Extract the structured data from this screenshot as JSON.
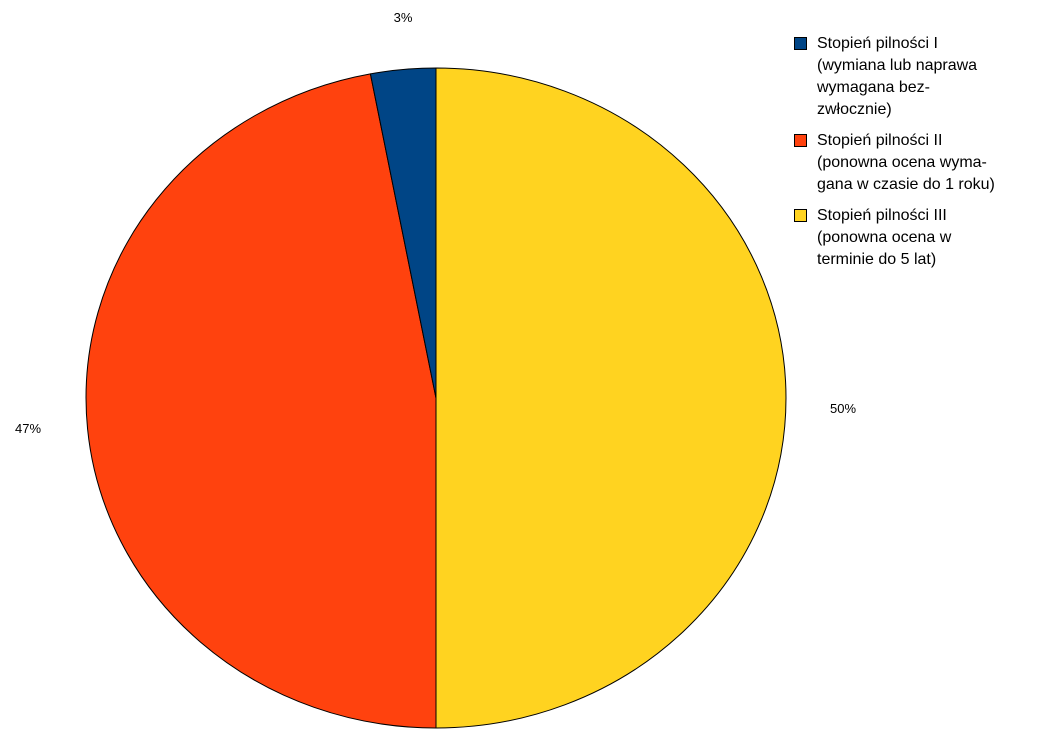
{
  "chart_data": {
    "type": "pie",
    "slices": [
      {
        "name": "Stopień pilności I\n(wymiana lub naprawa\nwymagana bez-\nzwłocznie)",
        "value": 3,
        "label": "3%",
        "color": "#004586"
      },
      {
        "name": "Stopień pilności II\n(ponowna ocena wyma-\ngana w czasie do 1 roku)",
        "value": 47,
        "label": "47%",
        "color": "#ff420e"
      },
      {
        "name": "Stopień pilności III\n(ponowna ocena w\nterminie do 5 lat)",
        "value": 50,
        "label": "50%",
        "color": "#ffd320"
      }
    ],
    "slice_order_clockwise": [
      2,
      1,
      0
    ],
    "legend_order": [
      0,
      1,
      2
    ],
    "legend_position": "top-right"
  }
}
